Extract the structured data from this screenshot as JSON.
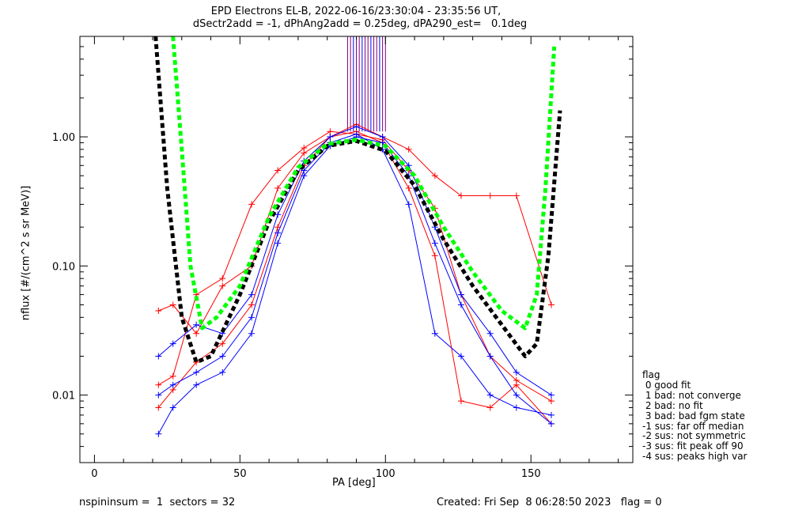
{
  "title": {
    "line1": "EPD Electrons EL-B, 2022-06-16/23:30:04 - 23:35:56 UT,",
    "line2": "dSectr2add = -1, dPhAng2add = 0.25deg, dPA290_est=   0.1deg"
  },
  "footer": {
    "left": "nspininsum =  1  sectors = 32",
    "right": "Created: Fri Sep  8 06:28:50 2023   flag = 0"
  },
  "legend": {
    "title": "flag",
    "items": [
      " 0 good fit",
      " 1 bad: not converge",
      " 2 bad: no fit",
      " 3 bad: bad fgm state",
      "-1 sus: far off median",
      "-2 sus: not symmetric",
      "-3 sus: fit peak off 90",
      "-4 sus: peaks high var"
    ]
  },
  "chart_data": {
    "type": "line",
    "title": "EPD Electrons EL-B, 2022-06-16/23:30:04 - 23:35:56 UT,",
    "subtitle": "dSectr2add = -1, dPhAng2add = 0.25deg, dPA290_est=   0.1deg",
    "xlabel": "PA [deg]",
    "ylabel": "nflux [#/(cm^2 s sr MeV)]",
    "xlim": [
      -5,
      185
    ],
    "ylim": [
      0.003,
      6
    ],
    "y_scale": "log",
    "x_ticks": [
      "0",
      "50",
      "100",
      "150"
    ],
    "x_tick_values": [
      0,
      50,
      100,
      150
    ],
    "y_ticks": [
      "0.01",
      "0.10",
      "1.00"
    ],
    "y_tick_values": [
      0.01,
      0.1,
      1.0
    ],
    "colors": {
      "blue": "#0000ff",
      "red": "#ff0000",
      "black": "#000000",
      "green": "#00ff00",
      "purple": "#800080"
    },
    "series": [
      {
        "color": "red",
        "style": "solid+cross",
        "x": [
          22,
          27,
          35,
          44,
          54,
          63,
          72,
          81,
          90,
          99,
          108,
          117,
          126,
          136,
          145,
          157
        ],
        "values": [
          0.012,
          0.014,
          0.06,
          0.08,
          0.3,
          0.55,
          0.82,
          1.1,
          1.05,
          0.95,
          0.55,
          0.28,
          0.06,
          0.02,
          0.013,
          0.009
        ]
      },
      {
        "color": "red",
        "style": "solid+cross",
        "x": [
          22,
          27,
          35,
          44,
          54,
          63,
          72,
          81,
          90,
          99,
          108,
          117,
          126,
          136,
          145,
          157
        ],
        "values": [
          0.045,
          0.05,
          0.03,
          0.07,
          0.1,
          0.4,
          0.75,
          1.0,
          1.25,
          1.0,
          0.8,
          0.5,
          0.35,
          0.35,
          0.35,
          0.05
        ]
      },
      {
        "color": "red",
        "style": "solid+cross",
        "x": [
          22,
          27,
          35,
          44,
          54,
          63,
          72,
          81,
          90,
          99,
          108,
          117,
          126,
          136,
          145,
          157
        ],
        "values": [
          0.008,
          0.011,
          0.018,
          0.025,
          0.05,
          0.2,
          0.6,
          1.0,
          1.1,
          0.9,
          0.4,
          0.12,
          0.009,
          0.008,
          0.012,
          0.006
        ]
      },
      {
        "color": "blue",
        "style": "solid+cross",
        "x": [
          22,
          27,
          35,
          44,
          54,
          63,
          72,
          81,
          90,
          99,
          108,
          117,
          126,
          136,
          145,
          157
        ],
        "values": [
          0.02,
          0.025,
          0.035,
          0.03,
          0.06,
          0.25,
          0.65,
          1.0,
          1.2,
          1.0,
          0.6,
          0.2,
          0.06,
          0.03,
          0.015,
          0.01
        ]
      },
      {
        "color": "blue",
        "style": "solid+cross",
        "x": [
          22,
          27,
          35,
          44,
          54,
          63,
          72,
          81,
          90,
          99,
          108,
          117,
          126,
          136,
          145,
          157
        ],
        "values": [
          0.01,
          0.012,
          0.015,
          0.02,
          0.04,
          0.18,
          0.55,
          0.9,
          1.05,
          0.8,
          0.3,
          0.03,
          0.02,
          0.01,
          0.008,
          0.007
        ]
      },
      {
        "color": "blue",
        "style": "solid+cross",
        "x": [
          22,
          27,
          35,
          44,
          54,
          63,
          72,
          81,
          90,
          99,
          108,
          117,
          126,
          136,
          145,
          157
        ],
        "values": [
          0.005,
          0.008,
          0.012,
          0.015,
          0.03,
          0.15,
          0.5,
          0.85,
          1.0,
          0.9,
          0.5,
          0.15,
          0.05,
          0.02,
          0.01,
          0.006
        ]
      },
      {
        "color": "black",
        "style": "dashed-fit",
        "x": [
          21,
          25,
          30,
          35,
          40,
          50,
          60,
          70,
          80,
          90,
          100,
          110,
          120,
          130,
          140,
          148,
          152,
          156,
          160
        ],
        "values": [
          6,
          0.4,
          0.04,
          0.018,
          0.02,
          0.06,
          0.22,
          0.55,
          0.85,
          0.93,
          0.78,
          0.42,
          0.16,
          0.07,
          0.035,
          0.02,
          0.025,
          0.12,
          1.6
        ]
      },
      {
        "color": "green",
        "style": "dashed-fit",
        "x": [
          27,
          30,
          33,
          37,
          42,
          50,
          60,
          70,
          80,
          90,
          100,
          110,
          120,
          130,
          140,
          148,
          152,
          155,
          158
        ],
        "values": [
          6,
          0.8,
          0.1,
          0.033,
          0.04,
          0.07,
          0.24,
          0.58,
          0.88,
          0.95,
          0.85,
          0.5,
          0.2,
          0.09,
          0.045,
          0.033,
          0.06,
          0.4,
          5
        ]
      }
    ],
    "spikes": {
      "color": "purple",
      "x": [
        87,
        88,
        89,
        90,
        91,
        92,
        93,
        94,
        95,
        96,
        97,
        98,
        99,
        100
      ],
      "from_value": 1.1
    },
    "legend_position": "right",
    "grid": false
  }
}
